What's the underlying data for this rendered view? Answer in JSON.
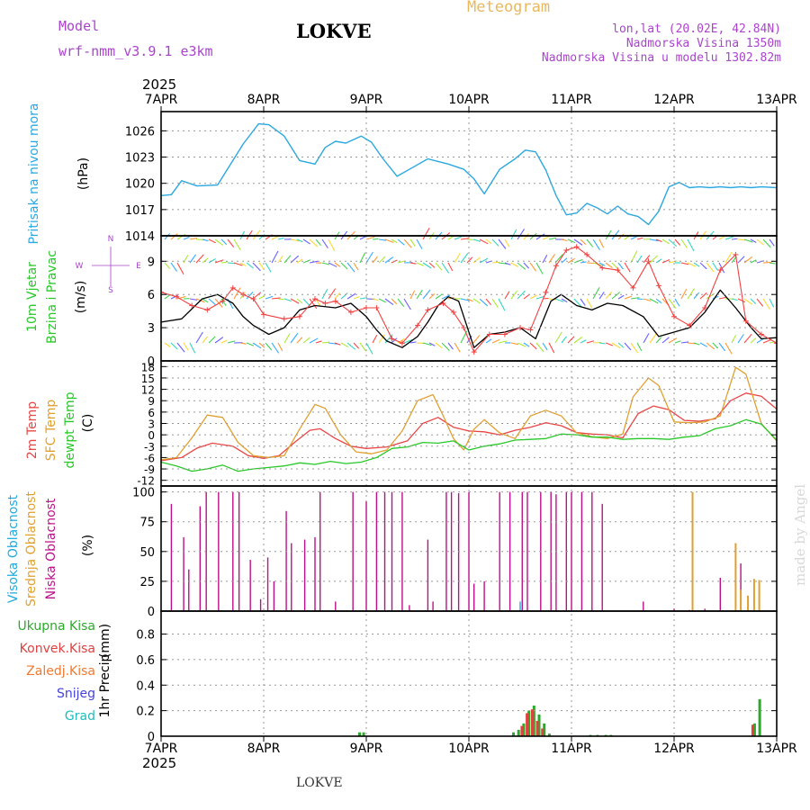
{
  "header": {
    "model_label": "Model",
    "model_name": "wrf-nmm_v3.9.1  e3km",
    "station": "LOKVE",
    "title": "Meteogram",
    "lonlat": "lon,lat (20.02E, 42.84N)",
    "elevation": "Nadmorska Visina 1350m",
    "model_elevation": "Nadmorska Visina u modelu 1302.82m",
    "footer_station": "LOKVE",
    "watermark": "made by Angel",
    "year": "2025"
  },
  "colors": {
    "pressure": "#2aa8e0",
    "wind_speed": "#000000",
    "gust": "#f04040",
    "temp2m": "#e84545",
    "sfc_temp": "#e0a030",
    "dewpoint": "#28c828",
    "high_cloud": "#22aadd",
    "mid_cloud": "#e0a030",
    "low_cloud": "#bb1188",
    "total_precip": "#2aaa2a",
    "conv_precip": "#e04040",
    "frz_precip": "#f07a30",
    "snow": "#4444dd",
    "hail": "#22bbbb",
    "grid": "#999999"
  },
  "chart_data": [
    {
      "name": "pressure",
      "type": "line",
      "title": "",
      "categories": [
        "7APR",
        "8APR",
        "9APR",
        "10APR",
        "11APR",
        "12APR",
        "13APR"
      ],
      "ylabel": "Pritisak na nivou mora",
      "unit": "(hPa)",
      "yticks": [
        "1014",
        "1017",
        "1020",
        "1023",
        "1026"
      ],
      "ylim": [
        1014,
        1028.2
      ],
      "x": [
        0,
        0.1,
        0.2,
        0.35,
        0.55,
        0.8,
        0.95,
        1.05,
        1.2,
        1.35,
        1.5,
        1.6,
        1.7,
        1.8,
        1.95,
        2.05,
        2.15,
        2.3,
        2.45,
        2.6,
        2.7,
        2.8,
        2.95,
        3.05,
        3.15,
        3.3,
        3.45,
        3.55,
        3.65,
        3.75,
        3.85,
        3.95,
        4.05,
        4.15,
        4.25,
        4.35,
        4.45,
        4.55,
        4.65,
        4.75,
        4.85,
        4.95,
        5.05,
        5.15,
        5.25,
        5.35,
        5.45,
        5.55,
        5.65,
        5.75,
        5.85,
        6.0
      ],
      "values": [
        1018.6,
        1018.7,
        1020.3,
        1019.7,
        1019.8,
        1024.5,
        1026.8,
        1026.7,
        1025.4,
        1022.6,
        1022.2,
        1024.1,
        1024.8,
        1024.6,
        1025.4,
        1024.7,
        1023.0,
        1020.8,
        1021.8,
        1022.8,
        1022.5,
        1022.2,
        1021.6,
        1020.5,
        1018.8,
        1021.6,
        1022.8,
        1023.8,
        1023.6,
        1021.5,
        1018.6,
        1016.4,
        1016.6,
        1017.7,
        1017.2,
        1016.5,
        1017.4,
        1016.5,
        1016.2,
        1015.3,
        1016.8,
        1019.6,
        1020.1,
        1019.5,
        1019.6,
        1019.5,
        1019.6,
        1019.5,
        1019.6,
        1019.5,
        1019.6,
        1019.5
      ]
    },
    {
      "name": "wind",
      "type": "line",
      "title": "",
      "ylabel": "10m Vjetar Brzina i Pravac",
      "unit": "(m/s)",
      "compass": [
        "N",
        "W",
        "E",
        "S"
      ],
      "yticks": [
        "0",
        "3",
        "6",
        "9"
      ],
      "ylim": [
        0,
        11.3
      ],
      "series": [
        {
          "name": "wind speed",
          "x": [
            0,
            0.2,
            0.4,
            0.55,
            0.7,
            0.8,
            0.9,
            1.05,
            1.2,
            1.35,
            1.5,
            1.7,
            1.85,
            2.0,
            2.1,
            2.2,
            2.35,
            2.5,
            2.6,
            2.7,
            2.8,
            2.9,
            3.05,
            3.2,
            3.35,
            3.5,
            3.65,
            3.8,
            3.9,
            4.05,
            4.2,
            4.35,
            4.5,
            4.7,
            4.85,
            5.0,
            5.15,
            5.3,
            5.45,
            5.6,
            5.75,
            5.85,
            6.0
          ],
          "values": [
            3.5,
            3.8,
            5.6,
            6.0,
            5.2,
            4.0,
            3.2,
            2.4,
            3.0,
            4.6,
            5.0,
            4.8,
            5.2,
            4.0,
            2.8,
            1.8,
            1.2,
            2.2,
            3.5,
            5.0,
            5.8,
            5.4,
            1.2,
            2.4,
            2.6,
            3.0,
            2.0,
            5.4,
            6.0,
            5.0,
            4.6,
            5.2,
            5.0,
            4.0,
            2.2,
            2.6,
            3.0,
            4.4,
            6.4,
            4.8,
            3.0,
            2.0,
            2.1
          ]
        },
        {
          "name": "gust",
          "x": [
            0,
            0.15,
            0.3,
            0.45,
            0.6,
            0.7,
            0.8,
            0.9,
            1.0,
            1.2,
            1.35,
            1.5,
            1.6,
            1.7,
            1.85,
            2.0,
            2.1,
            2.25,
            2.35,
            2.5,
            2.6,
            2.75,
            2.85,
            2.95,
            3.05,
            3.2,
            3.35,
            3.5,
            3.6,
            3.75,
            3.85,
            3.95,
            4.05,
            4.15,
            4.3,
            4.45,
            4.6,
            4.75,
            4.85,
            5.0,
            5.15,
            5.3,
            5.45,
            5.6,
            5.7,
            5.85,
            6.0
          ],
          "values": [
            6.2,
            5.8,
            5.0,
            4.6,
            5.4,
            6.6,
            6.0,
            5.6,
            4.2,
            3.8,
            4.0,
            5.6,
            5.2,
            5.4,
            4.4,
            4.8,
            4.8,
            2.0,
            1.6,
            3.2,
            4.6,
            5.2,
            4.4,
            3.0,
            0.8,
            2.4,
            2.4,
            3.0,
            2.8,
            6.2,
            8.6,
            10.0,
            10.3,
            9.6,
            8.4,
            8.2,
            6.6,
            9.0,
            6.8,
            4.0,
            3.2,
            4.8,
            8.2,
            9.6,
            3.6,
            2.4,
            1.6
          ]
        }
      ]
    },
    {
      "name": "temperature",
      "type": "line",
      "title": "",
      "ylabel": "2m Temp / SFC Temp / dewpt Temp",
      "unit": "(C)",
      "yticks": [
        "-12",
        "-9",
        "-6",
        "-3",
        "0",
        "3",
        "6",
        "9",
        "12",
        "15",
        "18"
      ],
      "ylim": [
        -13.5,
        19.5
      ],
      "series": [
        {
          "name": "2m Temp",
          "x": [
            0,
            0.2,
            0.35,
            0.5,
            0.7,
            0.85,
            1.0,
            1.15,
            1.3,
            1.45,
            1.55,
            1.7,
            1.85,
            2.0,
            2.2,
            2.4,
            2.55,
            2.7,
            2.85,
            3.0,
            3.15,
            3.3,
            3.45,
            3.6,
            3.75,
            3.9,
            4.05,
            4.2,
            4.35,
            4.5,
            4.65,
            4.8,
            4.95,
            5.1,
            5.25,
            5.4,
            5.55,
            5.7,
            5.85,
            6.0
          ],
          "values": [
            -6.8,
            -6.0,
            -3.5,
            -2.2,
            -3.0,
            -5.5,
            -6.2,
            -5.5,
            -2.0,
            1.2,
            1.6,
            -1.0,
            -3.0,
            -3.6,
            -3.2,
            -1.6,
            3.0,
            4.6,
            2.0,
            1.0,
            0.8,
            0.0,
            1.2,
            2.0,
            3.2,
            2.4,
            0.6,
            0.2,
            0.0,
            -0.8,
            5.6,
            7.6,
            6.6,
            3.8,
            3.6,
            4.2,
            9.0,
            11.0,
            10.2,
            6.8
          ]
        },
        {
          "name": "SFC Temp",
          "x": [
            0,
            0.15,
            0.3,
            0.45,
            0.6,
            0.75,
            0.9,
            1.05,
            1.2,
            1.35,
            1.5,
            1.6,
            1.75,
            1.9,
            2.05,
            2.2,
            2.35,
            2.5,
            2.65,
            2.75,
            2.85,
            2.95,
            3.05,
            3.15,
            3.3,
            3.45,
            3.6,
            3.75,
            3.9,
            4.05,
            4.2,
            4.35,
            4.5,
            4.6,
            4.75,
            4.85,
            5.0,
            5.15,
            5.3,
            5.45,
            5.6,
            5.7,
            5.85,
            6.0
          ],
          "values": [
            -6.6,
            -6.0,
            -0.8,
            5.2,
            4.6,
            -2.0,
            -5.5,
            -6.0,
            -5.5,
            1.5,
            8.0,
            7.0,
            0.0,
            -4.5,
            -5.0,
            -4.0,
            1.0,
            9.0,
            10.6,
            5.0,
            -1.0,
            -4.0,
            1.5,
            4.0,
            0.5,
            -1.0,
            5.0,
            6.5,
            5.0,
            0.5,
            -0.5,
            -1.0,
            0.2,
            10.0,
            15.0,
            13.0,
            3.4,
            3.2,
            3.4,
            5.0,
            17.8,
            16.0,
            3.0,
            -1.6
          ]
        },
        {
          "name": "dewpt Temp",
          "x": [
            0,
            0.15,
            0.3,
            0.45,
            0.6,
            0.75,
            0.9,
            1.05,
            1.2,
            1.35,
            1.5,
            1.65,
            1.8,
            1.95,
            2.1,
            2.25,
            2.4,
            2.55,
            2.7,
            2.85,
            3.0,
            3.15,
            3.3,
            3.45,
            3.6,
            3.75,
            3.9,
            4.05,
            4.2,
            4.35,
            4.5,
            4.65,
            4.8,
            4.95,
            5.1,
            5.25,
            5.4,
            5.55,
            5.7,
            5.85,
            6.0
          ],
          "values": [
            -7.2,
            -8.2,
            -9.6,
            -9.0,
            -8.0,
            -9.6,
            -9.0,
            -8.6,
            -8.2,
            -7.4,
            -7.8,
            -7.0,
            -7.6,
            -7.2,
            -6.0,
            -3.6,
            -3.2,
            -2.0,
            -2.2,
            -1.6,
            -4.0,
            -3.0,
            -2.4,
            -1.4,
            -1.2,
            -1.0,
            0.2,
            0.0,
            -0.6,
            -0.6,
            -1.2,
            -1.0,
            -1.0,
            -1.2,
            -0.6,
            -0.2,
            1.6,
            2.4,
            4.0,
            2.8,
            -1.4
          ]
        }
      ]
    },
    {
      "name": "cloud",
      "type": "bar",
      "title": "",
      "ylabel": "Visoka Oblacnost / Srednja Oblacnost / Niska Oblacnost",
      "unit": "(%)",
      "yticks": [
        "0",
        "25",
        "50",
        "75",
        "100"
      ],
      "ylim": [
        0,
        105
      ],
      "series": [
        {
          "name": "Niska Oblacnost",
          "x": [
            0.1,
            0.22,
            0.27,
            0.38,
            0.44,
            0.56,
            0.7,
            0.76,
            0.87,
            0.97,
            1.04,
            1.1,
            1.22,
            1.27,
            1.4,
            1.5,
            1.55,
            1.7,
            1.87,
            2.0,
            2.1,
            2.18,
            2.25,
            2.35,
            2.42,
            2.6,
            2.65,
            2.78,
            2.83,
            2.9,
            3.0,
            3.05,
            3.15,
            3.3,
            3.4,
            3.52,
            3.57,
            3.7,
            3.8,
            3.85,
            3.95,
            4.0,
            4.1,
            4.2,
            4.3,
            4.7,
            5.0,
            5.15,
            5.3,
            5.45,
            5.65
          ],
          "values": [
            90,
            62,
            35,
            88,
            100,
            100,
            100,
            100,
            43,
            10,
            45,
            25,
            84,
            57,
            60,
            62,
            100,
            8,
            100,
            92,
            100,
            100,
            100,
            100,
            5,
            60,
            8,
            100,
            100,
            99,
            100,
            23,
            25,
            100,
            100,
            100,
            100,
            100,
            100,
            98,
            100,
            100,
            100,
            100,
            90,
            8,
            2,
            1,
            2,
            28,
            40
          ]
        },
        {
          "name": "Srednja Oblacnost",
          "x": [
            5.18,
            5.6,
            5.65,
            5.72,
            5.78,
            5.83
          ],
          "values": [
            100,
            57,
            18,
            13,
            27,
            26
          ]
        },
        {
          "name": "Visoka Oblacnost",
          "x": [
            3.5
          ],
          "values": [
            8
          ]
        }
      ]
    },
    {
      "name": "precipitation",
      "type": "bar",
      "title": "",
      "ylabel": "1hr Precip",
      "unit": "(mm)",
      "legend": [
        "Ukupna Kisa",
        "Konvek.Kisa",
        "Zaledj.Kisa",
        "Snijeg",
        "Grad"
      ],
      "yticks": [
        "0",
        "0.2",
        "0.4",
        "0.6",
        "0.8"
      ],
      "ylim": [
        0,
        0.98
      ],
      "series": [
        {
          "name": "Ukupna Kisa",
          "x": [
            1.93,
            1.97,
            3.43,
            3.48,
            3.53,
            3.58,
            3.63,
            3.68,
            3.73,
            3.78,
            4.18,
            4.25,
            4.33,
            4.38,
            5.78,
            5.83
          ],
          "values": [
            0.03,
            0.03,
            0.03,
            0.05,
            0.1,
            0.2,
            0.24,
            0.17,
            0.1,
            0.02,
            0.01,
            0.01,
            0.01,
            0.01,
            0.1,
            0.29
          ]
        },
        {
          "name": "Konvek.Kisa",
          "x": [
            3.53,
            3.58,
            3.63,
            3.68,
            3.73,
            5.78
          ],
          "values": [
            0.08,
            0.18,
            0.21,
            0.12,
            0.06,
            0.09
          ]
        }
      ]
    }
  ]
}
